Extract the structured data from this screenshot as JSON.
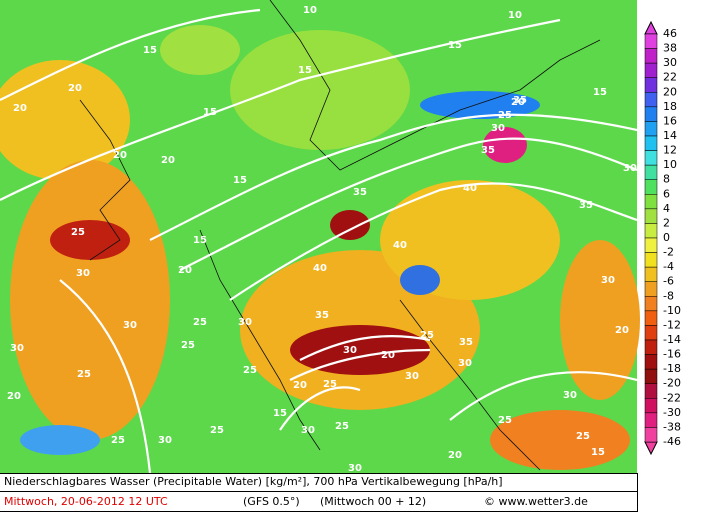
{
  "map": {
    "contour_labels": [
      "10",
      "15",
      "15",
      "10",
      "15",
      "20",
      "20",
      "20",
      "15",
      "20",
      "15",
      "25",
      "20",
      "30",
      "35",
      "15",
      "35",
      "40",
      "20",
      "25",
      "15",
      "35",
      "30",
      "35",
      "40",
      "40",
      "30",
      "25",
      "30",
      "25",
      "30",
      "35",
      "25",
      "30",
      "20",
      "30",
      "25",
      "20",
      "15",
      "30",
      "25",
      "30",
      "35",
      "30",
      "25",
      "25",
      "25",
      "30",
      "20",
      "30",
      "15",
      "25",
      "20",
      "30",
      "25",
      "30",
      "20",
      "25"
    ],
    "legend": {
      "labels": [
        46,
        38,
        30,
        22,
        20,
        18,
        16,
        14,
        12,
        10,
        8,
        6,
        4,
        2,
        0,
        -2,
        -4,
        -6,
        -8,
        -10,
        -12,
        -14,
        -16,
        -18,
        -20,
        -22,
        -30,
        -38,
        -46
      ],
      "colors": [
        "#e040e0",
        "#c020c8",
        "#a020d0",
        "#7030e0",
        "#4060f0",
        "#2080f0",
        "#20a0f0",
        "#20c0f0",
        "#40e0e0",
        "#40e0a0",
        "#50e060",
        "#80e040",
        "#a0e040",
        "#c8ec40",
        "#f0f040",
        "#f0e020",
        "#f0c020",
        "#f0a020",
        "#f08020",
        "#f06010",
        "#e04010",
        "#c02010",
        "#a01010",
        "#901010",
        "#b01040",
        "#d01060",
        "#e02080",
        "#f040a0"
      ]
    },
    "footer": {
      "title": "Niederschlagbares Wasser (Precipitable Water) [kg/m²], 700 hPa Vertikalbewegung [hPa/h]",
      "date": "Mittwoch, 20-06-2012  12 UTC",
      "model": "(GFS 0.5°)",
      "run": "(Mittwoch 00 + 12)",
      "credit": "© www.wetter3.de"
    }
  }
}
